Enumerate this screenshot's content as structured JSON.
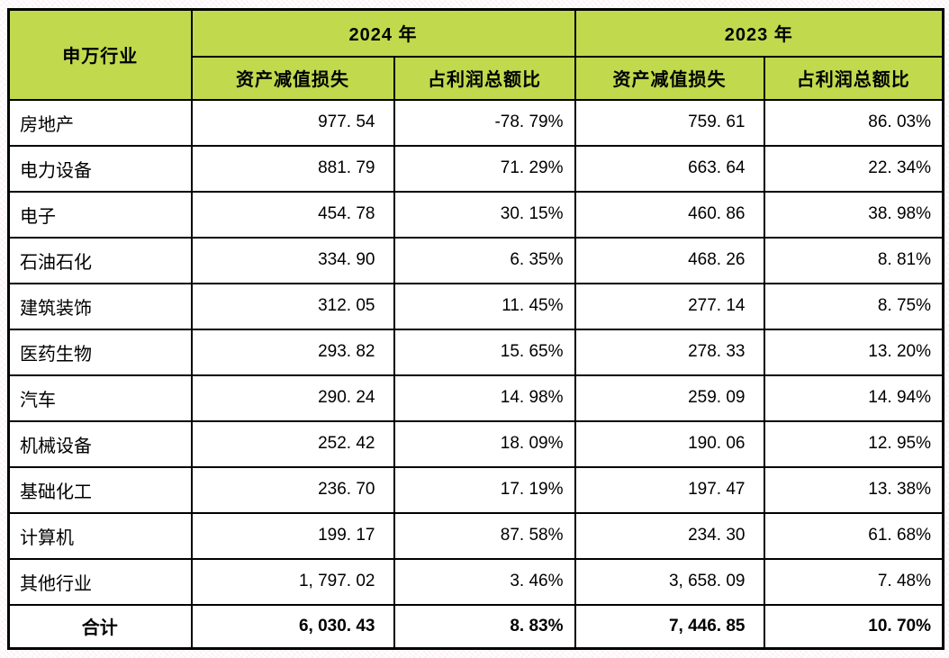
{
  "table": {
    "header": {
      "industry_col": "申万行业",
      "group_2024": "2024 年",
      "group_2023": "2023 年",
      "sub_loss_2024": "资产减值损失",
      "sub_pct_2024": "占利润总额比",
      "sub_loss_2023": "资产减值损失",
      "sub_pct_2023": "占利润总额比"
    },
    "rows": [
      {
        "industry": "房地产",
        "loss24": "977. 54",
        "pct24": "-78. 79%",
        "loss23": "759. 61",
        "pct23": "86. 03%"
      },
      {
        "industry": "电力设备",
        "loss24": "881. 79",
        "pct24": "71. 29%",
        "loss23": "663. 64",
        "pct23": "22. 34%"
      },
      {
        "industry": "电子",
        "loss24": "454. 78",
        "pct24": "30. 15%",
        "loss23": "460. 86",
        "pct23": "38. 98%"
      },
      {
        "industry": "石油石化",
        "loss24": "334. 90",
        "pct24": "6. 35%",
        "loss23": "468. 26",
        "pct23": "8. 81%"
      },
      {
        "industry": "建筑装饰",
        "loss24": "312. 05",
        "pct24": "11. 45%",
        "loss23": "277. 14",
        "pct23": "8. 75%"
      },
      {
        "industry": "医药生物",
        "loss24": "293. 82",
        "pct24": "15. 65%",
        "loss23": "278. 33",
        "pct23": "13. 20%"
      },
      {
        "industry": "汽车",
        "loss24": "290. 24",
        "pct24": "14. 98%",
        "loss23": "259. 09",
        "pct23": "14. 94%"
      },
      {
        "industry": "机械设备",
        "loss24": "252. 42",
        "pct24": "18. 09%",
        "loss23": "190. 06",
        "pct23": "12. 95%"
      },
      {
        "industry": "基础化工",
        "loss24": "236. 70",
        "pct24": "17. 19%",
        "loss23": "197. 47",
        "pct23": "13. 38%"
      },
      {
        "industry": "计算机",
        "loss24": "199. 17",
        "pct24": "87. 58%",
        "loss23": "234. 30",
        "pct23": "61. 68%"
      },
      {
        "industry": "其他行业",
        "loss24": "1, 797. 02",
        "pct24": "3. 46%",
        "loss23": "3, 658. 09",
        "pct23": "7. 48%"
      }
    ],
    "total": {
      "industry": "合计",
      "loss24": "6, 030. 43",
      "pct24": "8. 83%",
      "loss23": "7, 446. 85",
      "pct23": "10. 70%"
    }
  },
  "colors": {
    "header_bg": "#c1d94c",
    "border": "#000000",
    "cell_bg": "#ffffff",
    "text": "#000000"
  },
  "chart_data": {
    "type": "table",
    "title": "",
    "columns": [
      "申万行业",
      "2024年 资产减值损失",
      "2024年 占利润总额比",
      "2023年 资产减值损失",
      "2023年 占利润总额比"
    ],
    "rows": [
      [
        "房地产",
        977.54,
        "-78.79%",
        759.61,
        "86.03%"
      ],
      [
        "电力设备",
        881.79,
        "71.29%",
        663.64,
        "22.34%"
      ],
      [
        "电子",
        454.78,
        "30.15%",
        460.86,
        "38.98%"
      ],
      [
        "石油石化",
        334.9,
        "6.35%",
        468.26,
        "8.81%"
      ],
      [
        "建筑装饰",
        312.05,
        "11.45%",
        277.14,
        "8.75%"
      ],
      [
        "医药生物",
        293.82,
        "15.65%",
        278.33,
        "13.20%"
      ],
      [
        "汽车",
        290.24,
        "14.98%",
        259.09,
        "14.94%"
      ],
      [
        "机械设备",
        252.42,
        "18.09%",
        190.06,
        "12.95%"
      ],
      [
        "基础化工",
        236.7,
        "17.19%",
        197.47,
        "13.38%"
      ],
      [
        "计算机",
        199.17,
        "87.58%",
        234.3,
        "61.68%"
      ],
      [
        "其他行业",
        1797.02,
        "3.46%",
        3658.09,
        "7.48%"
      ],
      [
        "合计",
        6030.43,
        "8.83%",
        7446.85,
        "10.70%"
      ]
    ]
  }
}
